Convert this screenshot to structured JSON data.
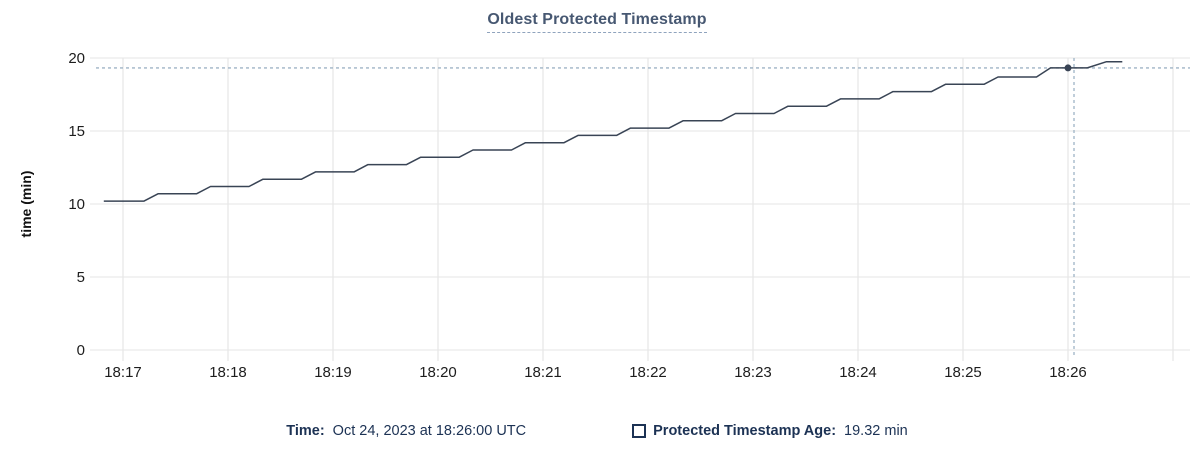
{
  "chart_data": {
    "type": "line",
    "title": "Oldest Protected Timestamp",
    "ylabel": "time (min)",
    "x_axis": {
      "tick_labels": [
        "18:17",
        "18:18",
        "18:19",
        "18:20",
        "18:21",
        "18:22",
        "18:23",
        "18:24",
        "18:25",
        "18:26"
      ],
      "tick_interval_seconds": 60,
      "extra_unlabeled_gridlines": 1
    },
    "y_axis": {
      "ticks": [
        0,
        5,
        10,
        15,
        20
      ],
      "range": [
        0,
        20
      ]
    },
    "series": [
      {
        "name": "Protected Timestamp Age",
        "unit": "min",
        "points_seconds_from_18_17": [
          [
            -11,
            10.2
          ],
          [
            12,
            10.2
          ],
          [
            20,
            10.7
          ],
          [
            42,
            10.7
          ],
          [
            50,
            11.2
          ],
          [
            72,
            11.2
          ],
          [
            80,
            11.7
          ],
          [
            102,
            11.7
          ],
          [
            110,
            12.2
          ],
          [
            132,
            12.2
          ],
          [
            140,
            12.7
          ],
          [
            162,
            12.7
          ],
          [
            170,
            13.2
          ],
          [
            192,
            13.2
          ],
          [
            200,
            13.7
          ],
          [
            222,
            13.7
          ],
          [
            230,
            14.2
          ],
          [
            252,
            14.2
          ],
          [
            260,
            14.7
          ],
          [
            282,
            14.7
          ],
          [
            290,
            15.2
          ],
          [
            312,
            15.2
          ],
          [
            320,
            15.7
          ],
          [
            342,
            15.7
          ],
          [
            350,
            16.2
          ],
          [
            372,
            16.2
          ],
          [
            380,
            16.7
          ],
          [
            402,
            16.7
          ],
          [
            410,
            17.2
          ],
          [
            432,
            17.2
          ],
          [
            440,
            17.7
          ],
          [
            462,
            17.7
          ],
          [
            470,
            18.2
          ],
          [
            492,
            18.2
          ],
          [
            500,
            18.7
          ],
          [
            522,
            18.7
          ],
          [
            530,
            19.32
          ],
          [
            551,
            19.32
          ],
          [
            562,
            19.75
          ],
          [
            571,
            19.75
          ]
        ]
      }
    ],
    "hover": {
      "time_label": "Oct 24, 2023 at 18:26:00 UTC",
      "seconds_from_18_17": 540,
      "value_min": 19.32
    },
    "grid": true,
    "legend_position": "bottom",
    "colors": {
      "line": "#394455",
      "grid": "#ebebeb",
      "crosshair": "#9fb4c5",
      "title": "#475872",
      "tick_text": "#1d1d1d",
      "legend_text": "#1c3254"
    }
  },
  "legend": {
    "time_label": "Time:",
    "time_value": "Oct 24, 2023 at 18:26:00 UTC",
    "series_label": "Protected Timestamp Age:",
    "series_value": "19.32 min"
  }
}
